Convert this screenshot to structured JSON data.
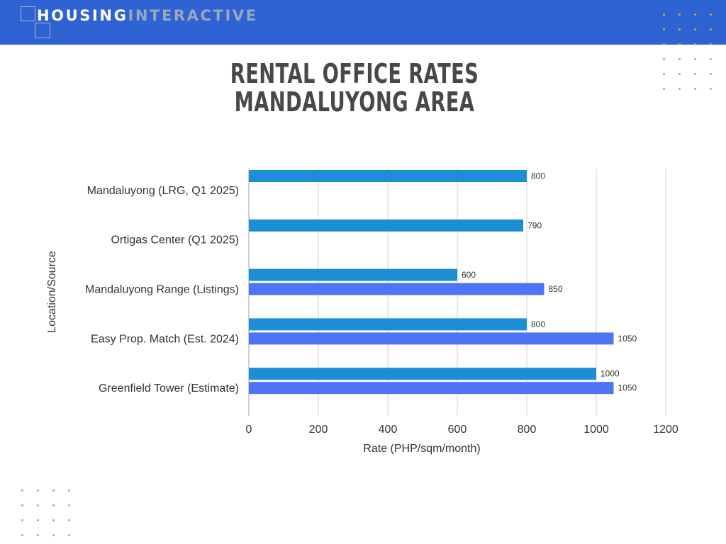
{
  "brand": {
    "primary": "HOUSING",
    "secondary": "INTERACTIVE"
  },
  "colors": {
    "header": "#2f63d3",
    "series1": "#1b8ed6",
    "series2": "#4f73f6",
    "dots": "#e39b5a",
    "title": "#484848"
  },
  "chart_data": {
    "type": "bar",
    "orientation": "horizontal",
    "title": [
      "RENTAL OFFICE RATES",
      "MANDALUYONG AREA"
    ],
    "xlabel": "Rate (PHP/sqm/month)",
    "ylabel": "Location/Source",
    "xlim": [
      0,
      1200
    ],
    "xticks": [
      0,
      200,
      400,
      600,
      800,
      1000,
      1200
    ],
    "grid": "vertical",
    "categories": [
      "Mandaluyong (LRG, Q1 2025)",
      "Ortigas Center (Q1 2025)",
      "Mandaluyong Range (Listings)",
      "Easy Prop. Match (Est. 2024)",
      "Greenfield Tower (Estimate)"
    ],
    "series": [
      {
        "values": [
          800,
          790,
          600,
          800,
          1000
        ]
      },
      {
        "values": [
          null,
          null,
          850,
          1050,
          1050
        ]
      }
    ]
  }
}
